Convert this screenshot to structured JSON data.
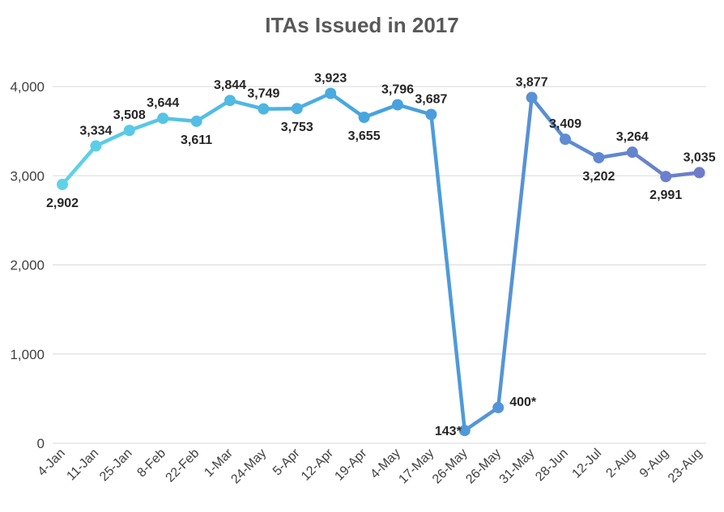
{
  "chart_data": {
    "type": "line",
    "title": "ITAs Issued in 2017",
    "xlabel": "",
    "ylabel": "",
    "ylim": [
      0,
      4000
    ],
    "yticks": [
      "0",
      "1,000",
      "2,000",
      "3,000",
      "4,000"
    ],
    "grid": true,
    "legend": "none",
    "colors": {
      "start": "#5ED3E8",
      "mid": "#45A3DF",
      "end": "#6E7CC9",
      "grid": "#D9D9D9"
    },
    "categories": [
      "4-Jan",
      "11-Jan",
      "25-Jan",
      "8-Feb",
      "22-Feb",
      "1-Mar",
      "24-May",
      "5-Apr",
      "12-Apr",
      "19-Apr",
      "4-May",
      "17-May",
      "26-May",
      "26-May",
      "31-May",
      "28-Jun",
      "12-Jul",
      "2-Aug",
      "9-Aug",
      "23-Aug"
    ],
    "values": [
      2902,
      3334,
      3508,
      3644,
      3611,
      3844,
      3749,
      3753,
      3923,
      3655,
      3796,
      3687,
      143,
      400,
      3877,
      3409,
      3202,
      3264,
      2991,
      3035
    ],
    "data_labels": [
      "2,902",
      "3,334",
      "3,508",
      "3,644",
      "3,611",
      "3,844",
      "3,749",
      "3,753",
      "3,923",
      "3,655",
      "3,796",
      "3,687",
      "143*",
      "400*",
      "3,877",
      "3,409",
      "3,202",
      "3,264",
      "2,991",
      "3,035"
    ]
  }
}
